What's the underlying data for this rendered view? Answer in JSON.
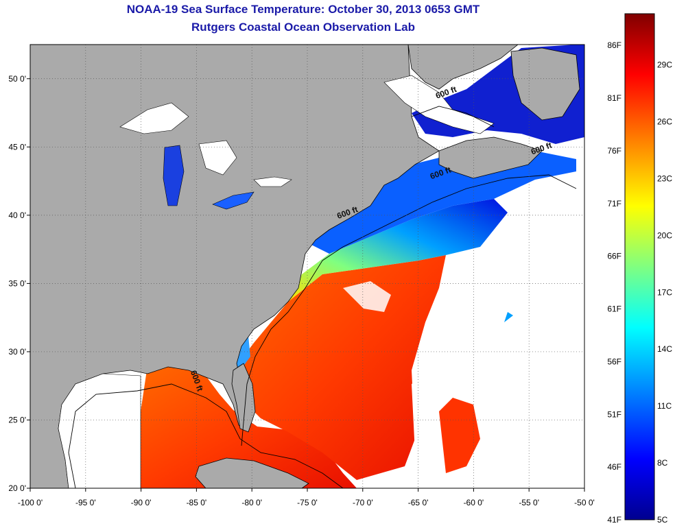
{
  "header": {
    "title": "NOAA-19 Sea Surface Temperature:  October 30, 2013 0653 GMT",
    "subtitle": "Rutgers Coastal Ocean Observation Lab"
  },
  "map": {
    "lon_range": [
      -100,
      -50
    ],
    "lat_range": [
      20,
      52.5
    ],
    "lon_ticks": [
      {
        "value": -100,
        "label": "-100 0'"
      },
      {
        "value": -95,
        "label": "-95 0'"
      },
      {
        "value": -90,
        "label": "-90 0'"
      },
      {
        "value": -85,
        "label": "-85 0'"
      },
      {
        "value": -80,
        "label": "-80 0'"
      },
      {
        "value": -75,
        "label": "-75 0'"
      },
      {
        "value": -70,
        "label": "-70 0'"
      },
      {
        "value": -65,
        "label": "-65 0'"
      },
      {
        "value": -60,
        "label": "-60 0'"
      },
      {
        "value": -55,
        "label": "-55 0'"
      },
      {
        "value": -50,
        "label": "-50 0'"
      }
    ],
    "lat_ticks": [
      {
        "value": 20,
        "label": "20 0'"
      },
      {
        "value": 25,
        "label": "25 0'"
      },
      {
        "value": 30,
        "label": "30 0'"
      },
      {
        "value": 35,
        "label": "35 0'"
      },
      {
        "value": 40,
        "label": "40 0'"
      },
      {
        "value": 45,
        "label": "45 0'"
      },
      {
        "value": 50,
        "label": "50 0'"
      }
    ],
    "contour_labels": [
      {
        "text": "600 ft",
        "lon": -62.4,
        "lat": 48.8
      },
      {
        "text": "600 ft",
        "lon": -53.8,
        "lat": 44.7
      },
      {
        "text": "600 ft",
        "lon": -62.9,
        "lat": 42.9
      },
      {
        "text": "600 ft",
        "lon": -71.3,
        "lat": 40.0
      },
      {
        "text": "600 ft",
        "lon": -85.2,
        "lat": 27.8
      }
    ],
    "colors": {
      "land": "#aaaaaa",
      "no_data": "#ffffff",
      "grid": "#555555"
    }
  },
  "colorbar": {
    "range_f": [
      41,
      89
    ],
    "range_c": [
      5,
      31.7
    ],
    "fahrenheit_labels": [
      "86F",
      "81F",
      "76F",
      "71F",
      "66F",
      "61F",
      "56F",
      "51F",
      "46F",
      "41F"
    ],
    "fahrenheit_values": [
      86,
      81,
      76,
      71,
      66,
      61,
      56,
      51,
      46,
      41
    ],
    "celsius_labels": [
      "29C",
      "26C",
      "23C",
      "20C",
      "17C",
      "14C",
      "11C",
      "8C",
      "5C"
    ],
    "celsius_values": [
      29,
      26,
      23,
      20,
      17,
      14,
      11,
      8,
      5
    ],
    "palette": [
      "#00008f",
      "#0000ff",
      "#0080ff",
      "#00ffff",
      "#80ff80",
      "#ffff00",
      "#ff8000",
      "#ff0000",
      "#800000"
    ]
  }
}
